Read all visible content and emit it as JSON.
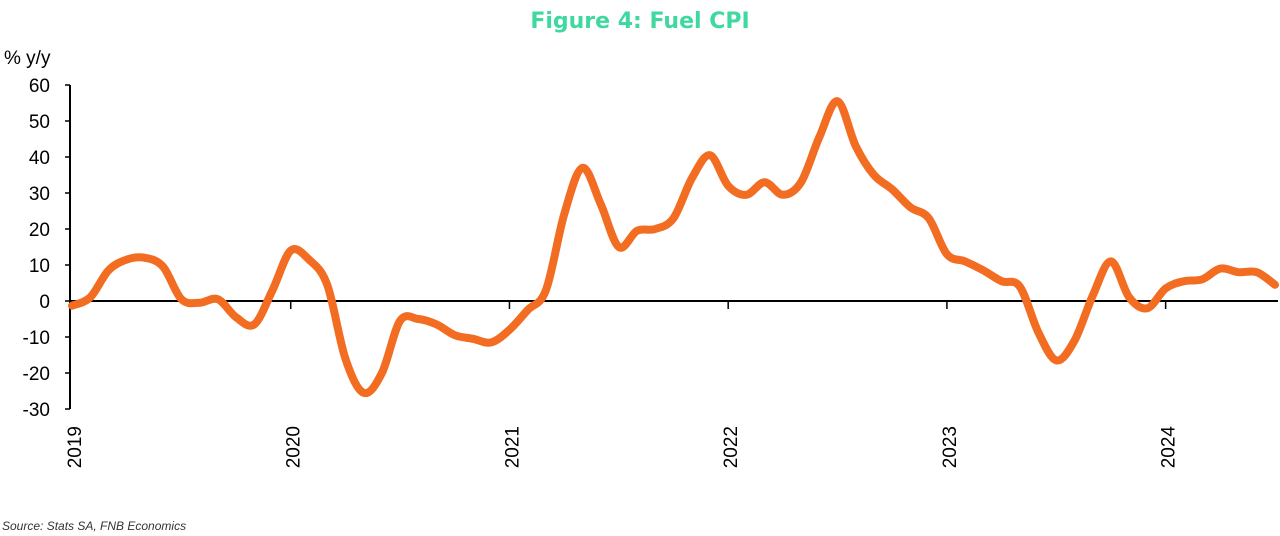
{
  "chart_data": {
    "type": "line",
    "title": "Figure 4: Fuel CPI",
    "ylabel": "% y/y",
    "xlabel": "",
    "source": "Source: Stats SA, FNB Economics",
    "ylim": [
      -30,
      60
    ],
    "yticks": [
      "60",
      "50",
      "40",
      "30",
      "20",
      "10",
      "0",
      "-10",
      "-20",
      "-30"
    ],
    "ytick_values": [
      60,
      50,
      40,
      30,
      20,
      10,
      0,
      -10,
      -20,
      -30
    ],
    "x_categories": [
      "2019",
      "2020",
      "2021",
      "2022",
      "2023",
      "2024"
    ],
    "grid": false,
    "legend": "none",
    "colors": {
      "title": "#3fd9a0",
      "line": "#f26c21",
      "axis": "#000000"
    },
    "series": [
      {
        "x": [
          "2019-01",
          "2019-02",
          "2019-03",
          "2019-04",
          "2019-05",
          "2019-06",
          "2019-07",
          "2019-08",
          "2019-09",
          "2019-10",
          "2019-11",
          "2019-12",
          "2020-01",
          "2020-02",
          "2020-03",
          "2020-04",
          "2020-05",
          "2020-06",
          "2020-07",
          "2020-08",
          "2020-09",
          "2020-10",
          "2020-11",
          "2020-12",
          "2021-01",
          "2021-02",
          "2021-03",
          "2021-04",
          "2021-05",
          "2021-06",
          "2021-07",
          "2021-08",
          "2021-09",
          "2021-10",
          "2021-11",
          "2021-12",
          "2022-01",
          "2022-02",
          "2022-03",
          "2022-04",
          "2022-05",
          "2022-06",
          "2022-07",
          "2022-08",
          "2022-09",
          "2022-10",
          "2022-11",
          "2022-12",
          "2023-01",
          "2023-02",
          "2023-03",
          "2023-04",
          "2023-05",
          "2023-06",
          "2023-07",
          "2023-08",
          "2023-09",
          "2023-10",
          "2023-11",
          "2023-12",
          "2024-01",
          "2024-02",
          "2024-03",
          "2024-04",
          "2024-05",
          "2024-06",
          "2024-07"
        ],
        "values": [
          -1.3,
          1,
          8.5,
          11.5,
          12,
          9.5,
          0.5,
          -0.5,
          0.5,
          -4.5,
          -6.5,
          3,
          14,
          11.5,
          4.5,
          -16,
          -25.5,
          -20,
          -5.5,
          -5,
          -6.5,
          -9.5,
          -10.5,
          -11.5,
          -8,
          -2.5,
          3,
          24,
          37,
          27,
          15,
          19.5,
          20,
          23,
          34,
          40.5,
          32,
          29.5,
          33,
          29.5,
          33,
          45.5,
          55.5,
          43,
          35,
          31,
          26,
          23,
          13,
          11,
          8.5,
          5.5,
          4,
          -8.5,
          -16.5,
          -11,
          1.5,
          11,
          1,
          -2,
          3.5,
          5.5,
          6,
          9,
          8,
          8,
          4.5
        ]
      }
    ]
  }
}
